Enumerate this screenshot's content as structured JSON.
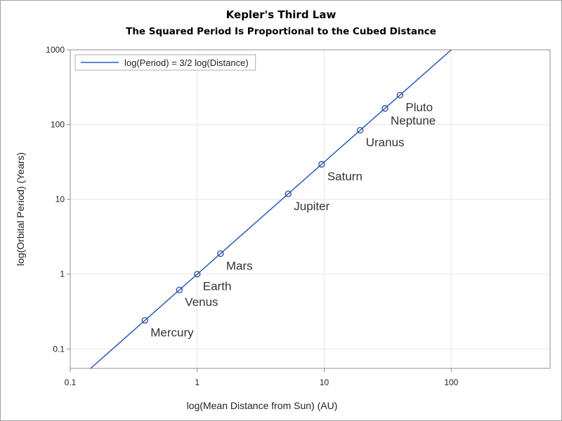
{
  "chart_data": {
    "type": "scatter",
    "title": "Kepler's Third Law",
    "subtitle": "The Squared Period Is Proportional to the Cubed Distance",
    "xlabel": "log(Mean Distance from Sun) (AU)",
    "ylabel": "log(Orbital Period) (Years)",
    "x_scale": "log",
    "y_scale": "log",
    "xlim": [
      0.1,
      600
    ],
    "ylim": [
      0.055,
      1000
    ],
    "x_ticks": [
      "0.1",
      "1",
      "10",
      "100"
    ],
    "y_ticks": [
      "0.1",
      "1",
      "10",
      "100",
      "1000"
    ],
    "grid": true,
    "legend": {
      "position": "top-left",
      "entries": [
        "log(Period) = 3/2 log(Distance)"
      ]
    },
    "line": {
      "name": "log(Period) = 3/2 log(Distance)",
      "slope": 1.5,
      "intercept": 0
    },
    "points": [
      {
        "label": "Mercury",
        "x": 0.387,
        "y": 0.241
      },
      {
        "label": "Venus",
        "x": 0.723,
        "y": 0.615
      },
      {
        "label": "Earth",
        "x": 1.0,
        "y": 1.0
      },
      {
        "label": "Mars",
        "x": 1.524,
        "y": 1.881
      },
      {
        "label": "Jupiter",
        "x": 5.203,
        "y": 11.86
      },
      {
        "label": "Saturn",
        "x": 9.537,
        "y": 29.45
      },
      {
        "label": "Uranus",
        "x": 19.19,
        "y": 84.02
      },
      {
        "label": "Neptune",
        "x": 30.07,
        "y": 164.8
      },
      {
        "label": "Pluto",
        "x": 39.48,
        "y": 248.1
      }
    ],
    "colors": {
      "line": "#2a5bb8",
      "marker": "#2a4a90",
      "grid": "#e6e6e6",
      "axis": "#909090"
    }
  }
}
